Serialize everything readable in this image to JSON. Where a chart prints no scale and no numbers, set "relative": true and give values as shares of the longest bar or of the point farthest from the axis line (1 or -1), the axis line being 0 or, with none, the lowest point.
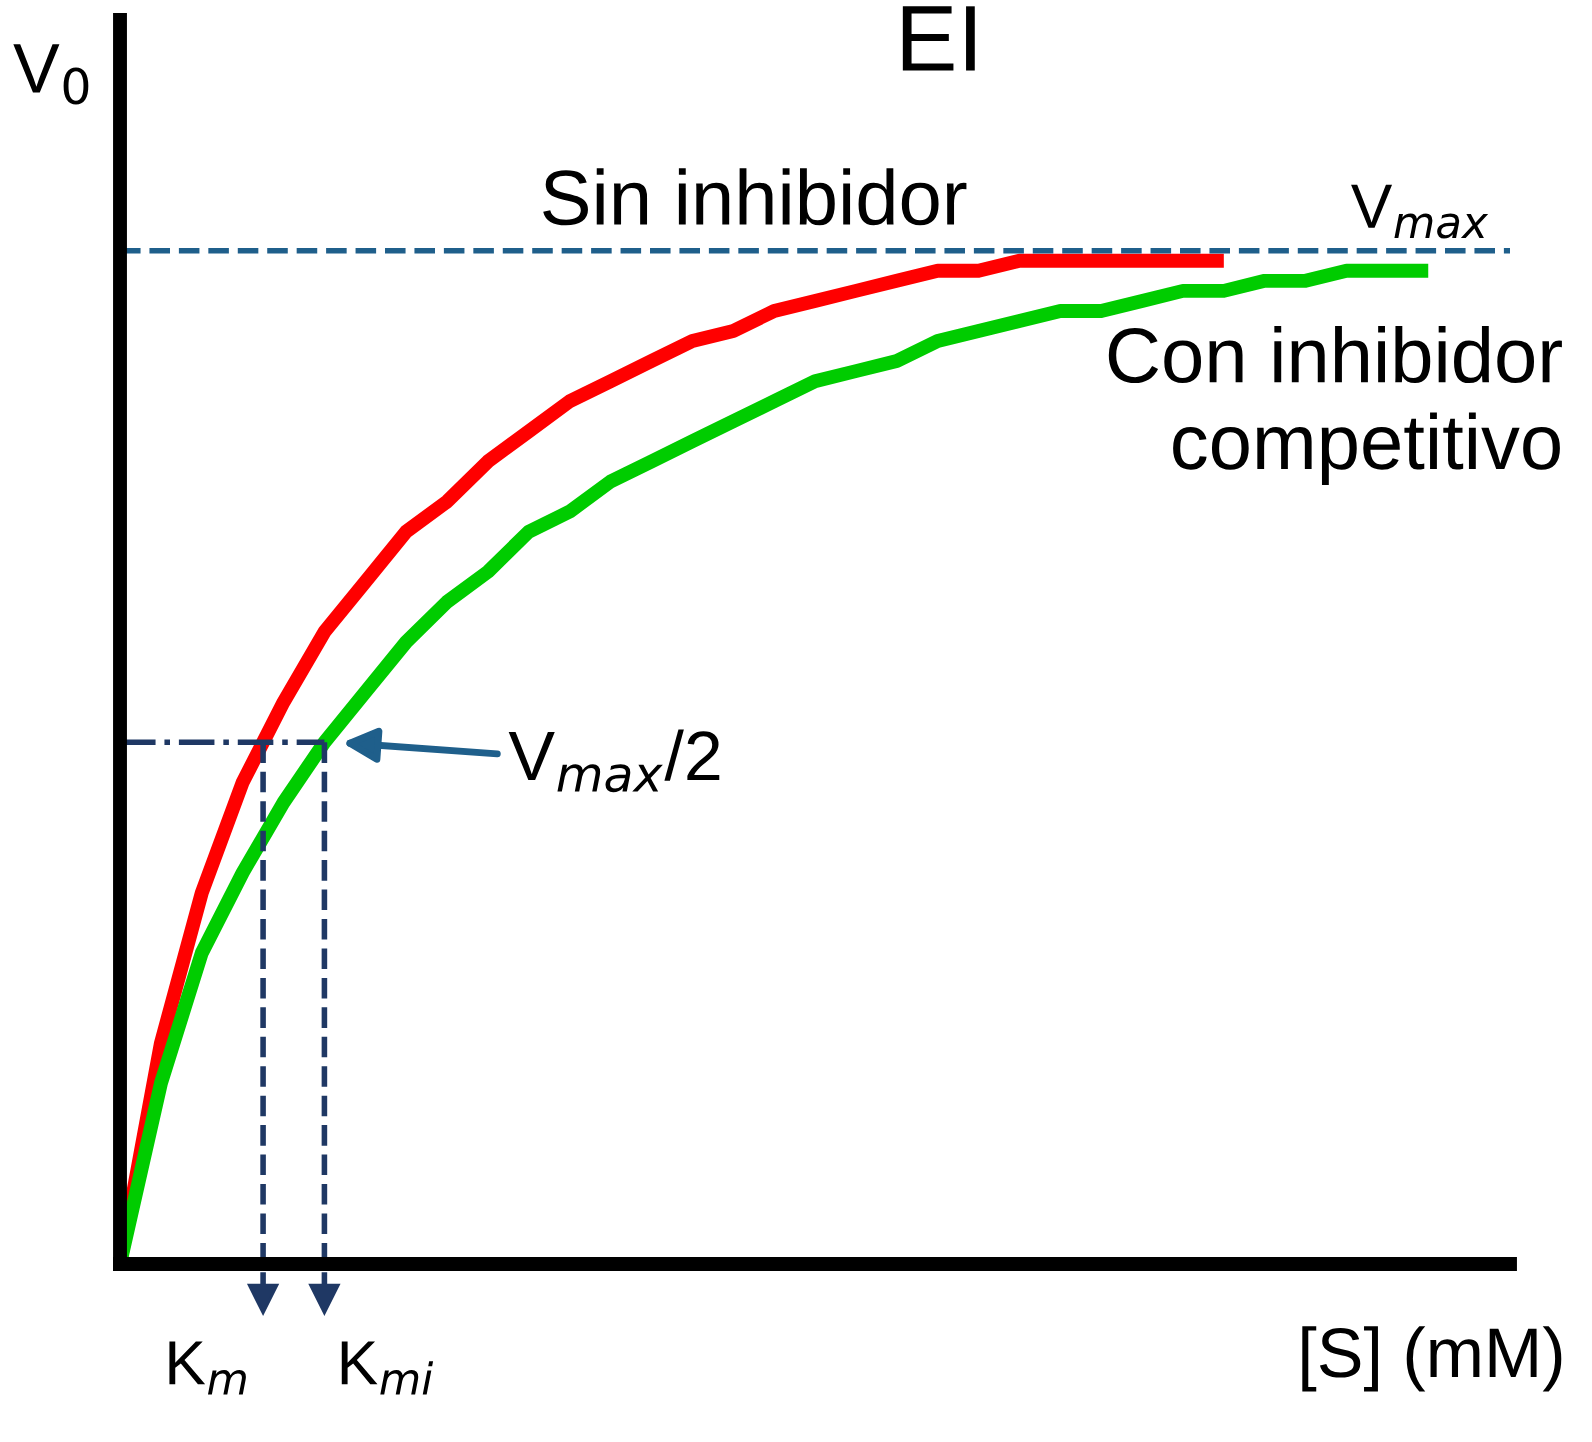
{
  "chart_data": {
    "type": "line",
    "title": "EI",
    "xlabel": "[S] (mM)",
    "ylabel": "V$_{0}$",
    "relative": true,
    "categories": [
      null,
      null,
      null,
      null,
      null,
      null,
      null,
      null,
      null,
      null,
      null,
      null,
      null,
      null,
      null,
      null,
      null,
      null,
      null,
      null,
      null,
      null,
      null,
      null,
      null,
      null,
      null,
      null,
      null,
      null,
      null,
      null,
      null,
      null,
      null
    ],
    "series": [
      {
        "name": "Sin inhibidor",
        "color": "#ff0000",
        "values": [
          0,
          0.22,
          0.37,
          0.48,
          0.56,
          0.63,
          0.68,
          0.73,
          0.76,
          0.8,
          0.83,
          0.86,
          0.88,
          0.9,
          0.92,
          0.93,
          0.95,
          0.96,
          0.97,
          0.98,
          0.99,
          0.99,
          1.0,
          1.0,
          1.0,
          1.0,
          1.0,
          1.0,
          null,
          null,
          null,
          null,
          null,
          null,
          null
        ]
      },
      {
        "name": "Con inhibidor\ncompetitivo",
        "color": "#00cc00",
        "values": [
          0,
          0.18,
          0.31,
          0.39,
          0.46,
          0.52,
          0.57,
          0.62,
          0.66,
          0.69,
          0.73,
          0.75,
          0.78,
          0.8,
          0.82,
          0.84,
          0.86,
          0.88,
          0.89,
          0.9,
          0.92,
          0.93,
          0.94,
          0.95,
          0.95,
          0.96,
          0.97,
          0.97,
          0.98,
          0.98,
          0.99,
          0.99,
          0.99,
          null,
          null
        ]
      }
    ],
    "ref_lines": [
      {
        "axis": "y",
        "value": 1.01,
        "label": "V$_{max}$",
        "color": "#1f5f8b",
        "line_style": "dashed"
      },
      {
        "axis": "y",
        "value": 0.52,
        "label": "V$_{max}$/2",
        "color": "#1f3864",
        "line_style": "dashdot"
      }
    ],
    "annotations": [
      "K$_{m}$",
      "K$_{mi}$"
    ],
    "grid": false,
    "legend": false,
    "marker": "none",
    "line_style": "solid"
  }
}
